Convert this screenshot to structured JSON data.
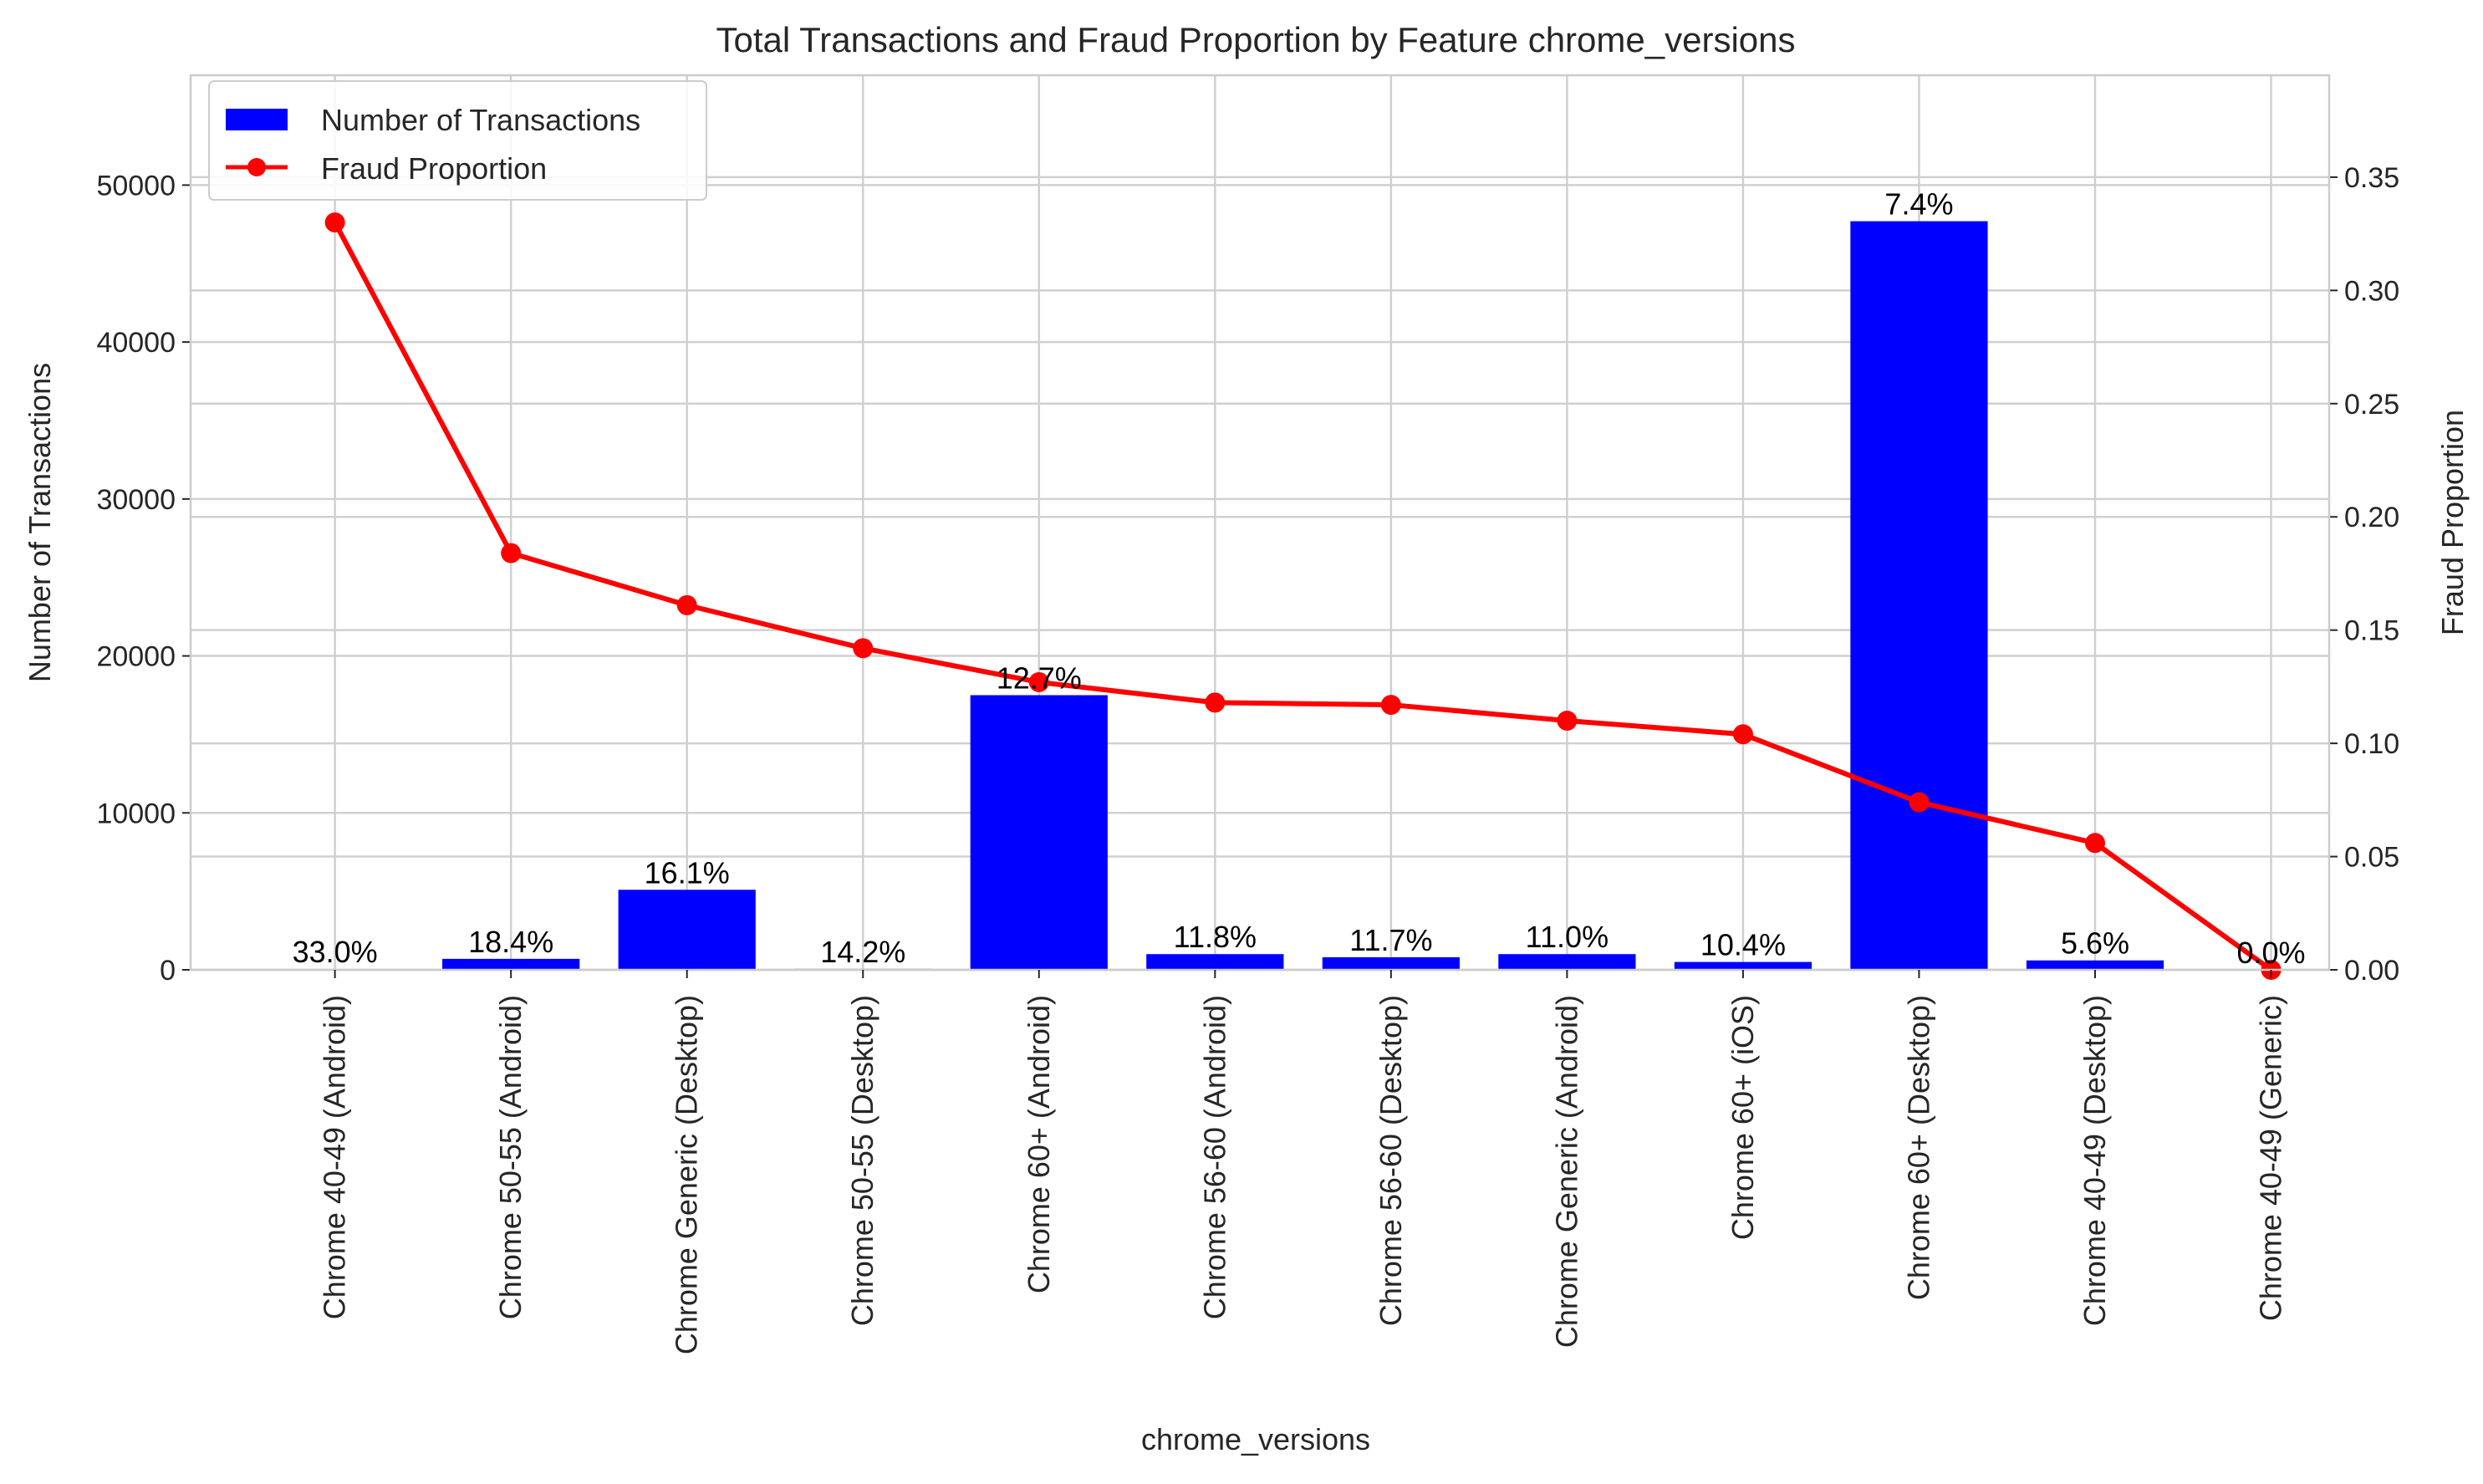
{
  "chart_data": {
    "type": "bar",
    "title": "Total Transactions and Fraud Proportion by Feature chrome_versions",
    "xlabel": "chrome_versions",
    "ylabel": "Number of Transactions",
    "y2label": "Fraud Proportion",
    "categories": [
      "Chrome 40-49 (Android)",
      "Chrome 50-55 (Android)",
      "Chrome Generic (Desktop)",
      "Chrome 50-55 (Desktop)",
      "Chrome 60+ (Android)",
      "Chrome 56-60 (Android)",
      "Chrome 56-60 (Desktop)",
      "Chrome Generic (Android)",
      "Chrome 60+ (iOS)",
      "Chrome 60+ (Desktop)",
      "Chrome 40-49 (Desktop)",
      "Chrome 40-49 (Generic)"
    ],
    "series": [
      {
        "name": "Number of Transactions",
        "type": "bar",
        "axis": "left",
        "color": "#0000ff",
        "values": [
          50,
          700,
          5100,
          60,
          17500,
          1000,
          800,
          1000,
          500,
          47700,
          600,
          5
        ]
      },
      {
        "name": "Fraud Proportion",
        "type": "line",
        "axis": "right",
        "color": "#ff0000",
        "marker": "circle",
        "values": [
          0.33,
          0.184,
          0.161,
          0.142,
          0.127,
          0.118,
          0.117,
          0.11,
          0.104,
          0.074,
          0.056,
          0.0
        ]
      }
    ],
    "data_labels": [
      "33.0%",
      "18.4%",
      "16.1%",
      "14.2%",
      "12.7%",
      "11.8%",
      "11.7%",
      "11.0%",
      "10.4%",
      "7.4%",
      "5.6%",
      "0.0%"
    ],
    "ylim": [
      0,
      57000
    ],
    "y2lim": [
      0,
      0.395
    ],
    "yticks": [
      "0",
      "10000",
      "20000",
      "30000",
      "40000",
      "50000"
    ],
    "y2ticks": [
      "0.00",
      "0.05",
      "0.10",
      "0.15",
      "0.20",
      "0.25",
      "0.30",
      "0.35"
    ],
    "grid": true,
    "legend_position": "top-left"
  }
}
